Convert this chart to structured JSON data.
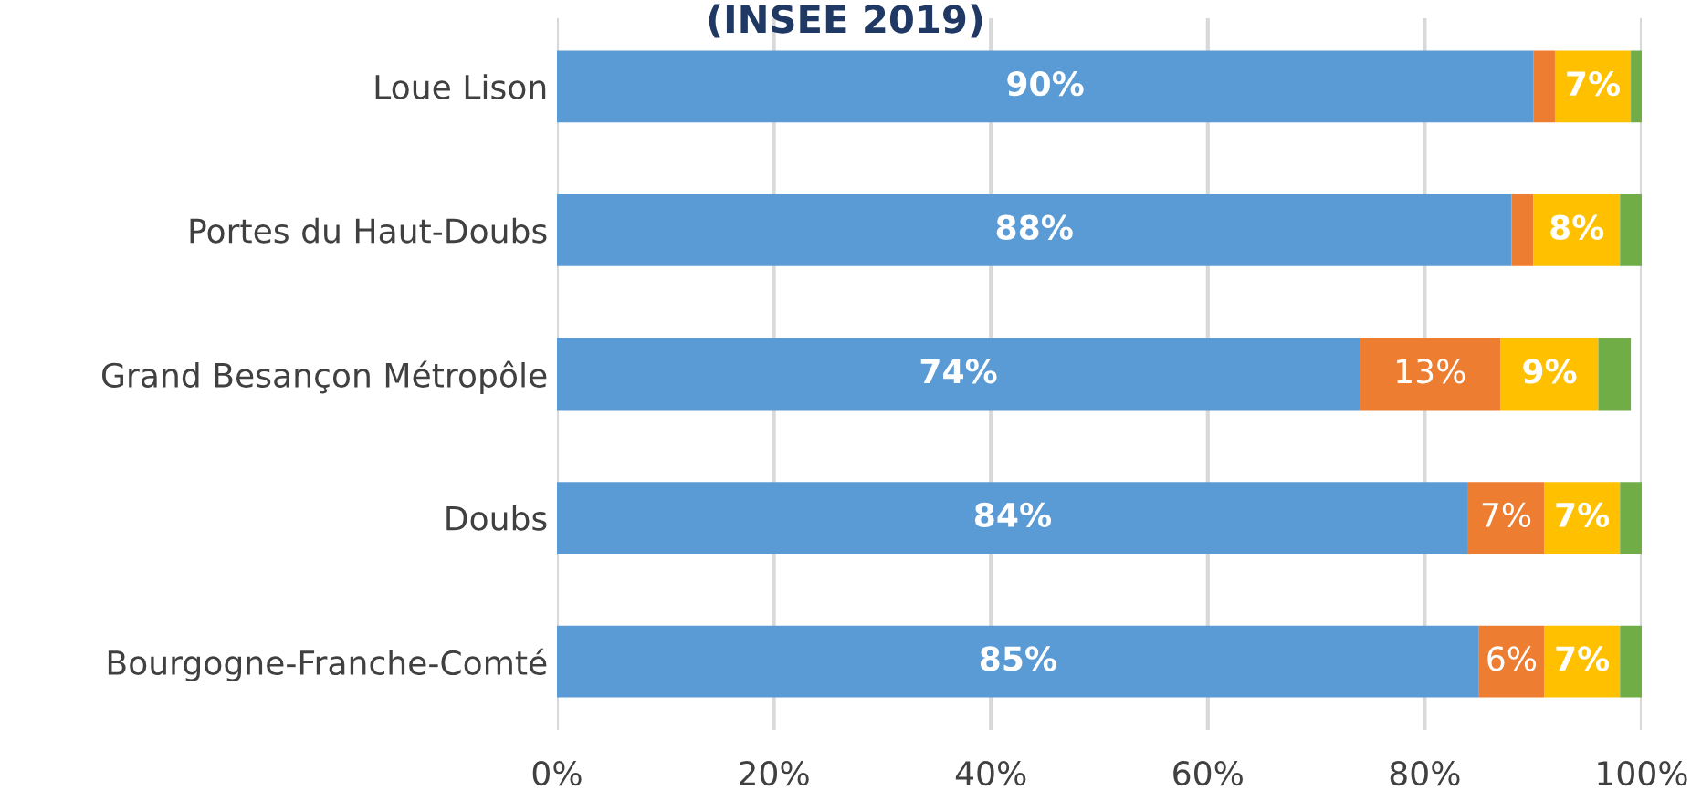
{
  "chart_data": {
    "type": "bar",
    "orientation": "horizontal",
    "stacked": true,
    "title": "(INSEE 2019)",
    "categories": [
      "Loue Lison",
      "Portes du Haut-Doubs",
      "Grand Besançon Métropôle",
      "Doubs",
      "Bourgogne-Franche-Comté"
    ],
    "series": [
      {
        "color": "#5b9bd5",
        "values": [
          90,
          88,
          74,
          84,
          85
        ],
        "value_labels": [
          "90%",
          "88%",
          "74%",
          "84%",
          "85%"
        ]
      },
      {
        "color": "#ed7d31",
        "values": [
          2,
          2,
          13,
          7,
          6
        ],
        "value_labels": [
          null,
          null,
          "13%",
          "7%",
          "6%"
        ]
      },
      {
        "color": "#ffc000",
        "values": [
          7,
          8,
          9,
          7,
          7
        ],
        "value_labels": [
          "7%",
          "8%",
          "9%",
          "7%",
          "7%"
        ]
      },
      {
        "color": "#70ad47",
        "values": [
          1,
          2,
          3,
          2,
          2
        ]
      }
    ],
    "xlim": [
      0,
      100
    ],
    "xticks": [
      {
        "value": 0,
        "label": "0%"
      },
      {
        "value": 20,
        "label": "20%"
      },
      {
        "value": 40,
        "label": "40%"
      },
      {
        "value": 60,
        "label": "60%"
      },
      {
        "value": 80,
        "label": "80%"
      },
      {
        "value": 100,
        "label": "100%"
      }
    ],
    "grid": "x",
    "legend": false
  }
}
